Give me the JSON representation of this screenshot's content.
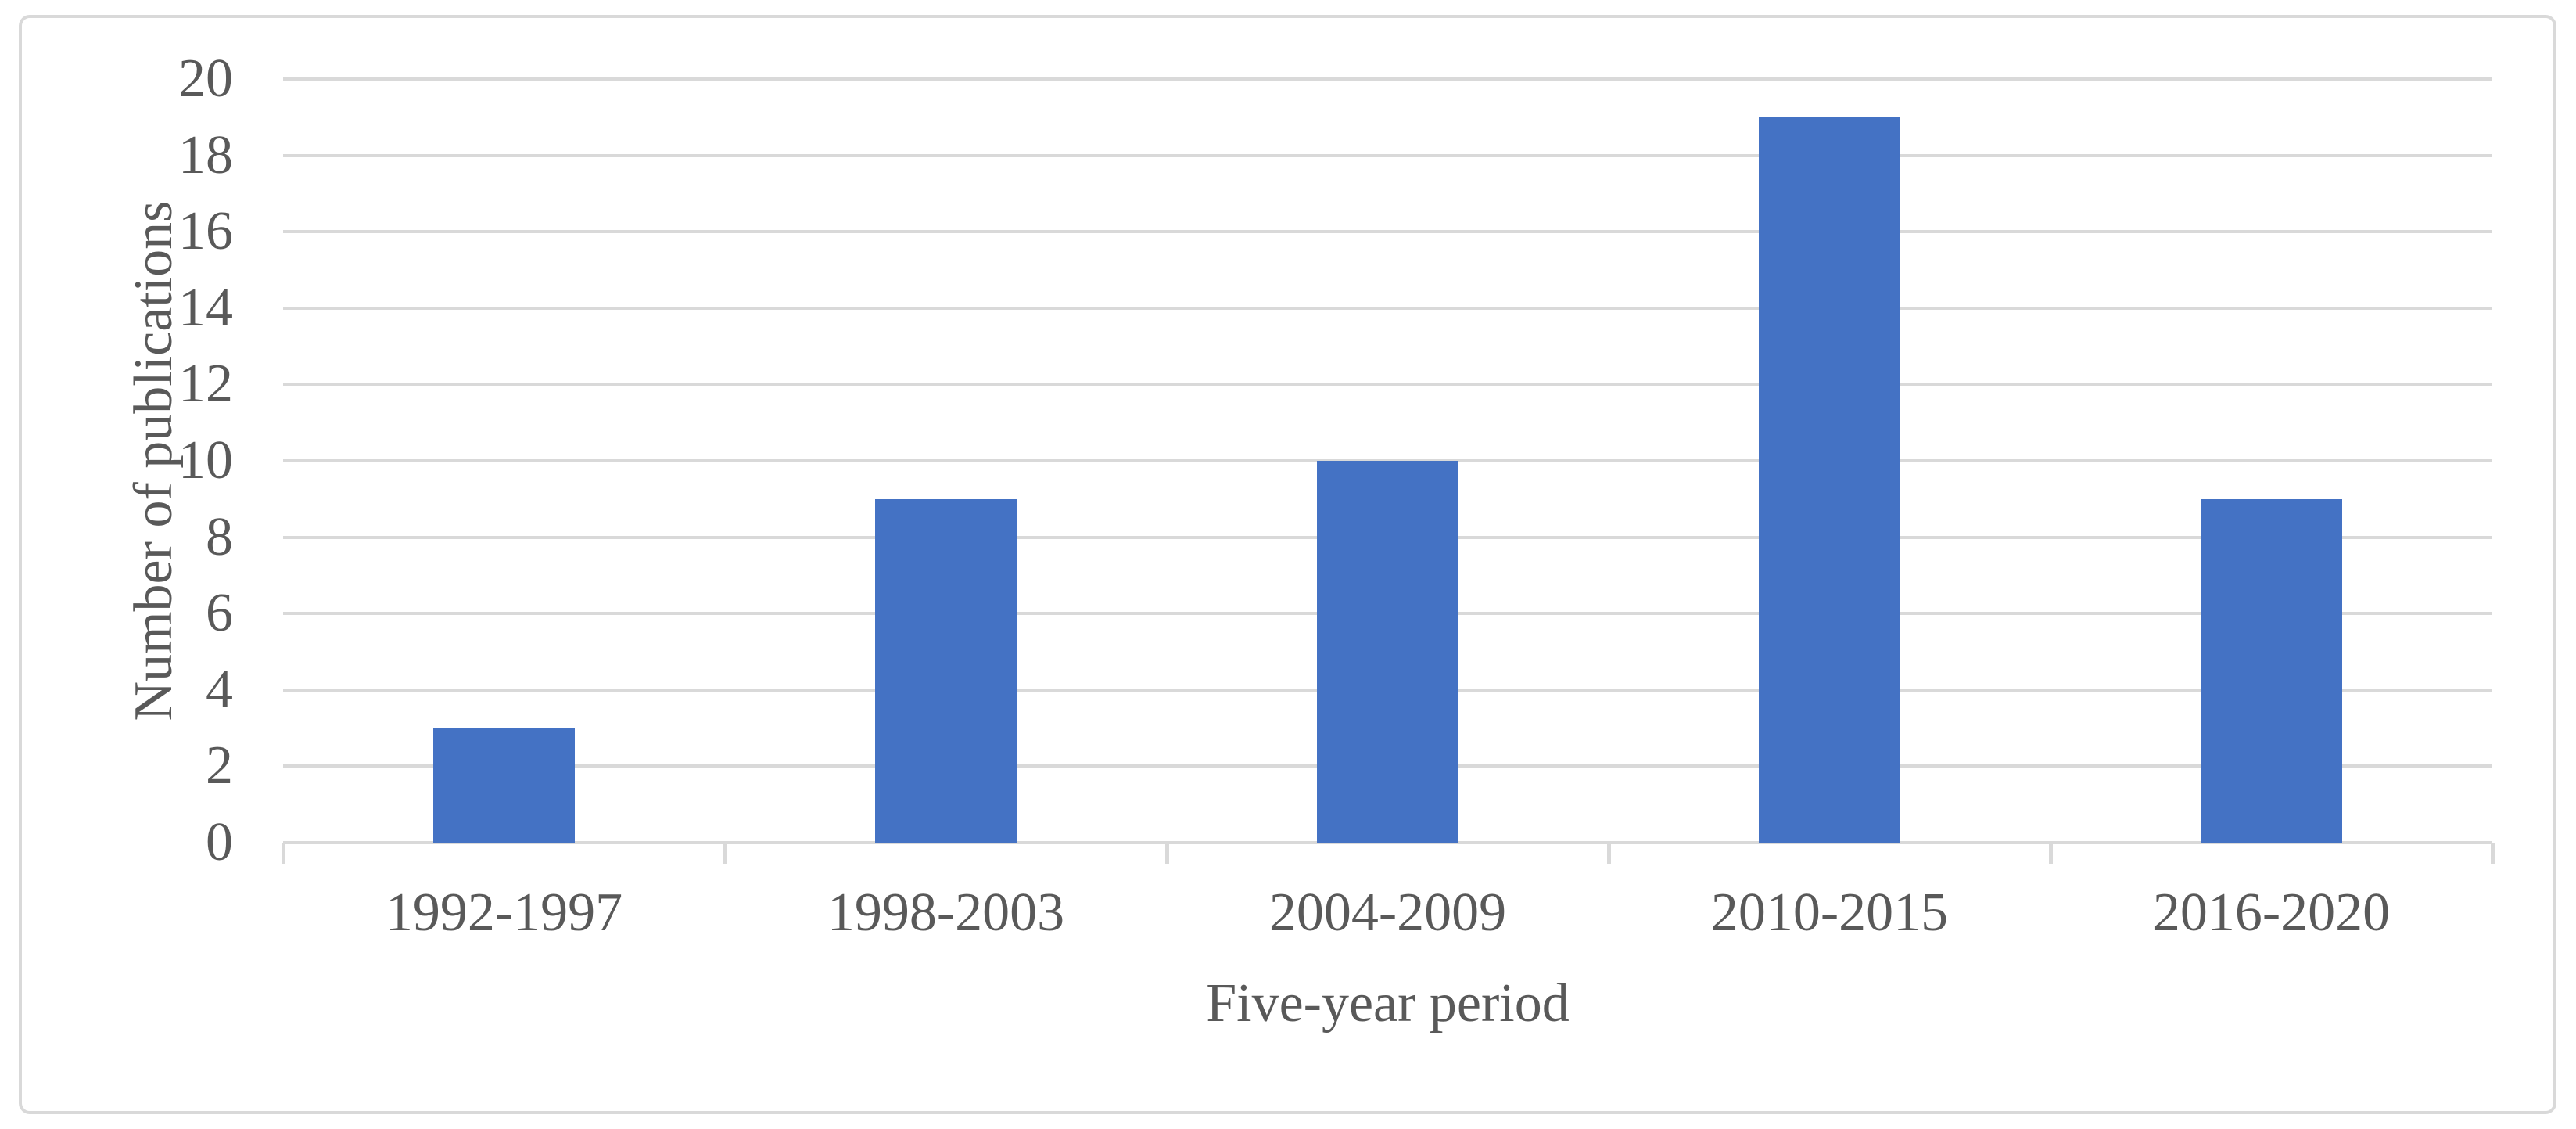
{
  "chart_data": {
    "type": "bar",
    "title": "",
    "categories": [
      "1992-1997",
      "1998-2003",
      "2004-2009",
      "2010-2015",
      "2016-2020"
    ],
    "values": [
      3,
      9,
      10,
      19,
      9
    ],
    "series_name": "Number of publications",
    "xlabel": "Five-year period",
    "ylabel": "Number of publications",
    "ylim": [
      0,
      20
    ],
    "yticks": [
      0,
      2,
      4,
      6,
      8,
      10,
      12,
      14,
      16,
      18,
      20
    ],
    "grid": "horizontal",
    "legend_position": "none",
    "colors": {
      "bar": "#4472C4",
      "gridline": "#D9D9D9",
      "axis_line": "#D9D9D9",
      "tick_mark": "#D9D9D9",
      "text": "#595959",
      "frame_border": "#D9D9D9",
      "background": "#FFFFFF"
    }
  }
}
